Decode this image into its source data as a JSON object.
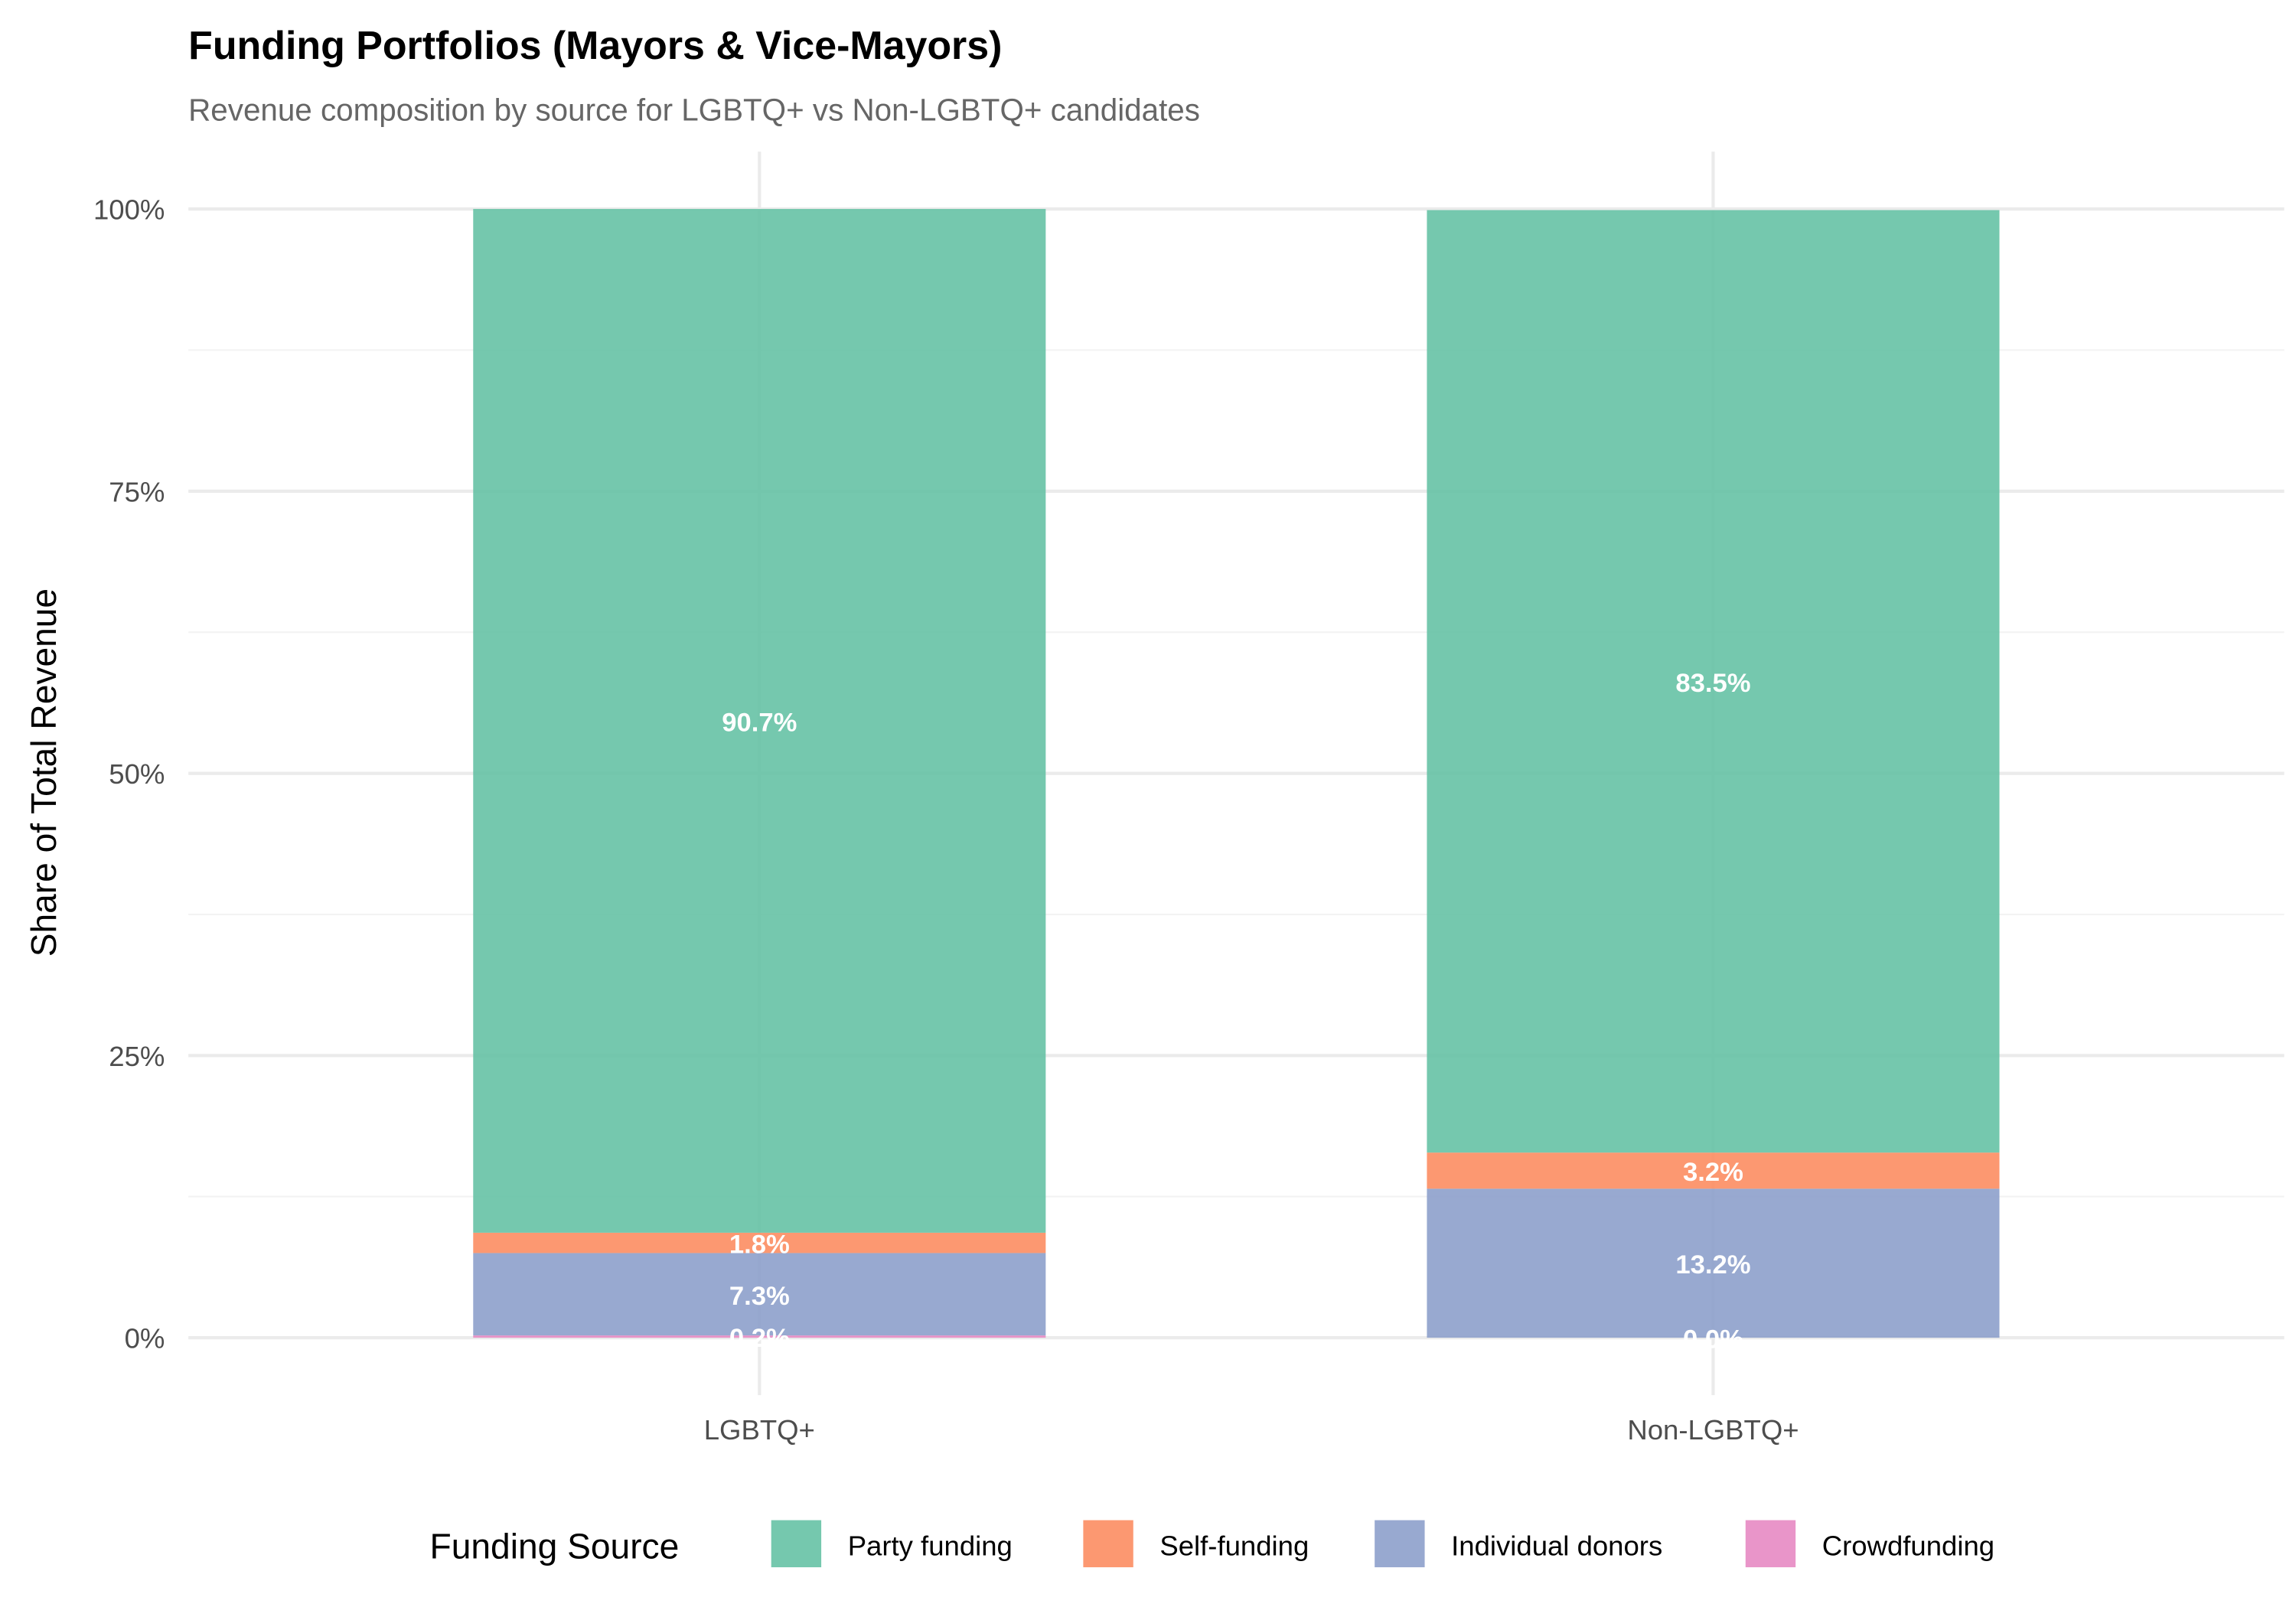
{
  "chart_data": {
    "type": "bar",
    "stacked": true,
    "title": "Funding Portfolios (Mayors & Vice-Mayors)",
    "subtitle": "Revenue composition by source for LGBTQ+ vs Non-LGBTQ+ candidates",
    "xlabel": "",
    "ylabel": "Share of Total Revenue",
    "ylim": [
      0,
      100
    ],
    "yticks": [
      0,
      25,
      50,
      75,
      100
    ],
    "ytick_labels": [
      "0%",
      "25%",
      "50%",
      "75%",
      "100%"
    ],
    "categories": [
      "LGBTQ+",
      "Non-LGBTQ+"
    ],
    "legend_title": "Funding Source",
    "legend_position": "bottom",
    "series": [
      {
        "name": "Crowdfunding",
        "color": "#E78AC3",
        "values": [
          0.2,
          0.0
        ],
        "labels": [
          "0.2%",
          "0.0%"
        ]
      },
      {
        "name": "Individual donors",
        "color": "#8DA0CB",
        "values": [
          7.3,
          13.2
        ],
        "labels": [
          "7.3%",
          "13.2%"
        ]
      },
      {
        "name": "Self-funding",
        "color": "#FC8D62",
        "values": [
          1.8,
          3.2
        ],
        "labels": [
          "1.8%",
          "3.2%"
        ]
      },
      {
        "name": "Party funding",
        "color": "#66C2A5",
        "values": [
          90.7,
          83.5
        ],
        "labels": [
          "90.7%",
          "83.5%"
        ]
      }
    ],
    "legend_order": [
      "Party funding",
      "Self-funding",
      "Individual donors",
      "Crowdfunding"
    ]
  }
}
